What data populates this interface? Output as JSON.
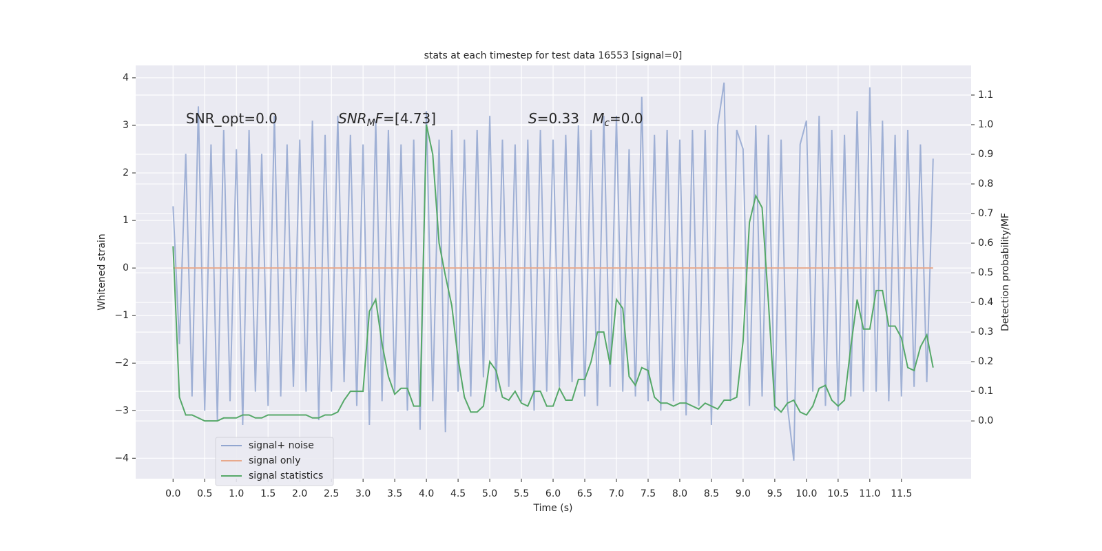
{
  "chart_data": {
    "type": "line",
    "title": "stats at each timestep for test data 16553 [signal=0]",
    "xlabel": "Time (s)",
    "ylabel": "Whitened strain",
    "y2label": "Detection probability/MF",
    "annotations": [
      [
        {
          "text": "SNR_opt=0.0"
        }
      ],
      [
        {
          "text": "SNR",
          "style": "i"
        },
        {
          "text": "M",
          "style": "sub"
        },
        {
          "text": "F",
          "style": "i"
        },
        {
          "text": "=[4.73]"
        }
      ],
      [
        {
          "text": "S",
          "style": "i"
        },
        {
          "text": "=0.33   "
        },
        {
          "text": "M",
          "style": "i"
        },
        {
          "text": "c",
          "style": "sub"
        },
        {
          "text": "=0.0"
        }
      ]
    ],
    "xlim": [
      -0.59,
      12.6
    ],
    "ylim": [
      -4.43,
      4.26
    ],
    "y2lim": [
      -0.195,
      1.2
    ],
    "xticks": [
      {
        "value": 0,
        "label": "0.0"
      },
      {
        "value": 0.5,
        "label": "0.5"
      },
      {
        "value": 1,
        "label": "1.0"
      },
      {
        "value": 1.5,
        "label": "1.5"
      },
      {
        "value": 2,
        "label": "2.0"
      },
      {
        "value": 2.5,
        "label": "2.5"
      },
      {
        "value": 3,
        "label": "3.0"
      },
      {
        "value": 3.5,
        "label": "3.5"
      },
      {
        "value": 4,
        "label": "4.0"
      },
      {
        "value": 4.5,
        "label": "4.5"
      },
      {
        "value": 5,
        "label": "5.0"
      },
      {
        "value": 5.5,
        "label": "5.5"
      },
      {
        "value": 6,
        "label": "6.0"
      },
      {
        "value": 6.5,
        "label": "6.5"
      },
      {
        "value": 7,
        "label": "7.0"
      },
      {
        "value": 7.5,
        "label": "7.5"
      },
      {
        "value": 8,
        "label": "8.0"
      },
      {
        "value": 8.5,
        "label": "8.5"
      },
      {
        "value": 9,
        "label": "9.0"
      },
      {
        "value": 9.5,
        "label": "9.5"
      },
      {
        "value": 10,
        "label": "10.0"
      },
      {
        "value": 10.5,
        "label": "10.5"
      },
      {
        "value": 11,
        "label": "11.0"
      },
      {
        "value": 11.5,
        "label": "11.5"
      }
    ],
    "yticks": [
      {
        "value": -4,
        "label": "−4"
      },
      {
        "value": -3,
        "label": "−3"
      },
      {
        "value": -2,
        "label": "−2"
      },
      {
        "value": -1,
        "label": "−1"
      },
      0,
      1,
      2,
      3,
      4
    ],
    "y2ticks": [
      {
        "value": 0,
        "label": "0.0"
      },
      {
        "value": 0.1,
        "label": "0.1"
      },
      {
        "value": 0.2,
        "label": "0.2"
      },
      {
        "value": 0.3,
        "label": "0.3"
      },
      {
        "value": 0.4,
        "label": "0.4"
      },
      {
        "value": 0.5,
        "label": "0.5"
      },
      {
        "value": 0.6,
        "label": "0.6"
      },
      {
        "value": 0.7,
        "label": "0.7"
      },
      {
        "value": 0.8,
        "label": "0.8"
      },
      {
        "value": 0.9,
        "label": "0.9"
      },
      {
        "value": 1,
        "label": "1.0"
      },
      {
        "value": 1.1,
        "label": "1.1"
      }
    ],
    "grid": true,
    "legend": "lower left",
    "x": [
      0,
      0.1,
      0.2,
      0.3,
      0.4,
      0.5,
      0.6,
      0.7,
      0.8,
      0.9,
      1,
      1.1,
      1.2,
      1.3,
      1.4,
      1.5,
      1.6,
      1.7,
      1.8,
      1.9,
      2,
      2.1,
      2.2,
      2.3,
      2.4,
      2.5,
      2.6,
      2.7,
      2.8,
      2.9,
      3,
      3.1,
      3.2,
      3.3,
      3.4,
      3.5,
      3.6,
      3.7,
      3.8,
      3.9,
      4,
      4.1,
      4.2,
      4.3,
      4.4,
      4.5,
      4.6,
      4.7,
      4.8,
      4.9,
      5,
      5.1,
      5.2,
      5.3,
      5.4,
      5.5,
      5.6,
      5.7,
      5.8,
      5.9,
      6,
      6.1,
      6.2,
      6.3,
      6.4,
      6.5,
      6.6,
      6.7,
      6.8,
      6.9,
      7,
      7.1,
      7.2,
      7.3,
      7.4,
      7.5,
      7.6,
      7.7,
      7.8,
      7.9,
      8,
      8.1,
      8.2,
      8.3,
      8.4,
      8.5,
      8.6,
      8.7,
      8.8,
      8.9,
      9,
      9.1,
      9.2,
      9.3,
      9.4,
      9.5,
      9.6,
      9.7,
      9.8,
      9.9,
      10,
      10.1,
      10.2,
      10.3,
      10.4,
      10.5,
      10.6,
      10.7,
      10.8,
      10.9,
      11,
      11.1,
      11.2,
      11.3,
      11.4,
      11.5,
      11.6,
      11.7,
      11.8,
      11.9,
      12
    ],
    "series": [
      {
        "name": "signal+ noise",
        "color": "#92a6d0",
        "opacity": 0.85,
        "values": [
          1.3,
          -1.6,
          2.4,
          -2.7,
          3.4,
          -3.0,
          2.6,
          -3.2,
          2.9,
          -2.8,
          2.5,
          -3.3,
          2.9,
          -2.6,
          2.4,
          -2.9,
          3.2,
          -2.7,
          2.6,
          -2.5,
          2.7,
          -2.6,
          3.1,
          -3.2,
          2.8,
          -2.6,
          3.2,
          -2.4,
          2.8,
          -2.9,
          2.6,
          -3.3,
          3.1,
          -2.8,
          2.9,
          -2.6,
          2.6,
          -3.0,
          2.7,
          -3.4,
          3.3,
          -2.8,
          2.7,
          -3.45,
          2.9,
          -2.6,
          2.7,
          -2.7,
          2.9,
          -2.3,
          3.2,
          -2.6,
          2.7,
          -2.5,
          2.6,
          -2.8,
          2.7,
          -3.0,
          2.9,
          -2.6,
          2.7,
          -2.5,
          2.8,
          -2.4,
          3.0,
          -2.7,
          2.9,
          -2.9,
          3.2,
          -2.5,
          3.2,
          -2.6,
          2.5,
          -2.7,
          3.6,
          -2.8,
          2.8,
          -3.0,
          2.9,
          -2.8,
          2.7,
          -3.1,
          2.9,
          -2.9,
          2.9,
          -3.3,
          3.0,
          3.9,
          -2.8,
          2.9,
          2.5,
          -2.9,
          3.0,
          -2.7,
          2.8,
          -3.0,
          2.7,
          -2.9,
          -4.05,
          2.6,
          3.1,
          -2.6,
          3.2,
          -2.9,
          2.9,
          -3.0,
          2.8,
          -2.7,
          3.3,
          -2.6,
          3.8,
          -2.6,
          3.1,
          -2.8,
          2.8,
          -2.7,
          2.9,
          -2.5,
          2.6,
          -2.4,
          2.3
        ]
      },
      {
        "name": "signal only",
        "color": "#e8a98c",
        "x": [
          0,
          12
        ],
        "values": [
          0,
          0
        ]
      },
      {
        "name": "signal statistics",
        "color": "#55a868",
        "axis": "y2",
        "values": [
          0.59,
          0.08,
          0.02,
          0.02,
          0.01,
          0.0,
          0.0,
          0.0,
          0.01,
          0.01,
          0.01,
          0.02,
          0.02,
          0.01,
          0.01,
          0.02,
          0.02,
          0.02,
          0.02,
          0.02,
          0.02,
          0.02,
          0.01,
          0.01,
          0.02,
          0.02,
          0.03,
          0.07,
          0.1,
          0.1,
          0.1,
          0.37,
          0.41,
          0.26,
          0.15,
          0.09,
          0.11,
          0.11,
          0.05,
          0.05,
          1.0,
          0.9,
          0.6,
          0.49,
          0.39,
          0.21,
          0.08,
          0.03,
          0.03,
          0.05,
          0.2,
          0.17,
          0.08,
          0.07,
          0.1,
          0.06,
          0.05,
          0.1,
          0.1,
          0.05,
          0.05,
          0.11,
          0.07,
          0.07,
          0.14,
          0.14,
          0.2,
          0.3,
          0.3,
          0.19,
          0.41,
          0.38,
          0.15,
          0.12,
          0.18,
          0.17,
          0.08,
          0.06,
          0.06,
          0.05,
          0.06,
          0.06,
          0.05,
          0.04,
          0.06,
          0.05,
          0.04,
          0.07,
          0.07,
          0.08,
          0.27,
          0.67,
          0.76,
          0.72,
          0.4,
          0.05,
          0.03,
          0.06,
          0.07,
          0.03,
          0.02,
          0.05,
          0.11,
          0.12,
          0.07,
          0.05,
          0.07,
          0.25,
          0.41,
          0.31,
          0.31,
          0.44,
          0.44,
          0.32,
          0.32,
          0.28,
          0.18,
          0.17,
          0.25,
          0.29,
          0.18
        ]
      }
    ]
  }
}
